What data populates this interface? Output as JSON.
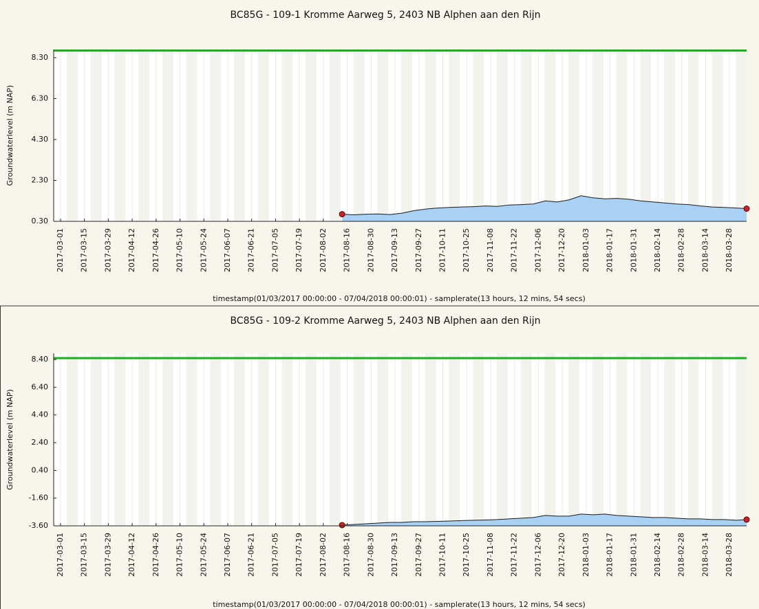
{
  "chart_data": [
    {
      "type": "area",
      "title": "BC85G - 109-1 Kromme Aarweg 5, 2403 NB Alphen aan den Rijn",
      "y_label": "Groundwaterlevel (m NAP)",
      "x_label": "timestamp(01/03/2017 00:00:00 - 07/04/2018 00:00:01) - samplerate(13 hours, 12 mins, 54 secs)",
      "x": [
        "2017-08-13",
        "2017-08-20",
        "2017-08-27",
        "2017-09-03",
        "2017-09-10",
        "2017-09-17",
        "2017-09-24",
        "2017-10-01",
        "2017-10-08",
        "2017-10-15",
        "2017-10-22",
        "2017-10-29",
        "2017-11-05",
        "2017-11-12",
        "2017-11-19",
        "2017-11-26",
        "2017-12-03",
        "2017-12-10",
        "2017-12-17",
        "2017-12-24",
        "2017-12-31",
        "2018-01-07",
        "2018-01-14",
        "2018-01-21",
        "2018-01-28",
        "2018-02-04",
        "2018-02-11",
        "2018-02-18",
        "2018-02-25",
        "2018-03-04",
        "2018-03-11",
        "2018-03-18",
        "2018-03-25",
        "2018-04-01",
        "2018-04-07"
      ],
      "values": [
        0.65,
        0.62,
        0.65,
        0.66,
        0.63,
        0.7,
        0.82,
        0.9,
        0.95,
        0.98,
        1.0,
        1.02,
        1.05,
        1.03,
        1.1,
        1.12,
        1.15,
        1.3,
        1.25,
        1.35,
        1.55,
        1.45,
        1.4,
        1.42,
        1.38,
        1.3,
        1.25,
        1.2,
        1.15,
        1.12,
        1.05,
        1.0,
        0.98,
        0.95,
        0.92
      ],
      "fill_color": "#a9d0f5",
      "line_color": "#1a1a1a",
      "marker_color": "#c0262c",
      "reference_line": {
        "value": 8.65,
        "color": "#22aa22"
      },
      "xlim": [
        "2017-02-25",
        "2018-04-07"
      ],
      "xticks": [
        "2017-03-01",
        "2017-03-15",
        "2017-03-29",
        "2017-04-12",
        "2017-04-26",
        "2017-05-10",
        "2017-05-24",
        "2017-06-07",
        "2017-06-21",
        "2017-07-05",
        "2017-07-19",
        "2017-08-02",
        "2017-08-16",
        "2017-08-30",
        "2017-09-13",
        "2017-09-27",
        "2017-10-11",
        "2017-10-25",
        "2017-11-08",
        "2017-11-22",
        "2017-12-06",
        "2017-12-20",
        "2018-01-03",
        "2018-01-17",
        "2018-01-31",
        "2018-02-14",
        "2018-02-28",
        "2018-03-14",
        "2018-03-28"
      ],
      "ylim": [
        0.3,
        8.7
      ],
      "yticks": [
        {
          "value": 0.3,
          "label": "0.30"
        },
        {
          "value": 2.3,
          "label": "2.30"
        },
        {
          "value": 4.3,
          "label": "4.30"
        },
        {
          "value": 6.3,
          "label": "6.30"
        },
        {
          "value": 8.3,
          "label": "8.30"
        }
      ],
      "grid": true
    },
    {
      "type": "area",
      "title": "BC85G - 109-2 Kromme Aarweg 5, 2403 NB Alphen aan den Rijn",
      "y_label": "Groundwaterlevel (m NAP)",
      "x_label": "timestamp(01/03/2017 00:00:00 - 07/04/2018 00:00:01) - samplerate(13 hours, 12 mins, 54 secs)",
      "x": [
        "2017-08-13",
        "2017-08-20",
        "2017-08-27",
        "2017-09-03",
        "2017-09-10",
        "2017-09-17",
        "2017-09-24",
        "2017-10-01",
        "2017-10-08",
        "2017-10-15",
        "2017-10-22",
        "2017-10-29",
        "2017-11-05",
        "2017-11-12",
        "2017-11-19",
        "2017-11-26",
        "2017-12-03",
        "2017-12-10",
        "2017-12-17",
        "2017-12-24",
        "2017-12-31",
        "2018-01-07",
        "2018-01-14",
        "2018-01-21",
        "2018-01-28",
        "2018-02-04",
        "2018-02-11",
        "2018-02-18",
        "2018-02-25",
        "2018-03-04",
        "2018-03-11",
        "2018-03-18",
        "2018-03-25",
        "2018-04-01",
        "2018-04-07"
      ],
      "values": [
        -3.55,
        -3.5,
        -3.45,
        -3.4,
        -3.35,
        -3.35,
        -3.3,
        -3.3,
        -3.28,
        -3.25,
        -3.22,
        -3.2,
        -3.18,
        -3.15,
        -3.1,
        -3.05,
        -3.0,
        -2.85,
        -2.9,
        -2.9,
        -2.75,
        -2.8,
        -2.75,
        -2.85,
        -2.9,
        -2.95,
        -3.0,
        -3.0,
        -3.05,
        -3.1,
        -3.1,
        -3.15,
        -3.15,
        -3.2,
        -3.15
      ],
      "fill_color": "#a9d0f5",
      "line_color": "#1a1a1a",
      "marker_color": "#c0262c",
      "reference_line": {
        "value": 8.5,
        "color": "#22aa22"
      },
      "xlim": [
        "2017-02-25",
        "2018-04-07"
      ],
      "xticks": [
        "2017-03-01",
        "2017-03-15",
        "2017-03-29",
        "2017-04-12",
        "2017-04-26",
        "2017-05-10",
        "2017-05-24",
        "2017-06-07",
        "2017-06-21",
        "2017-07-05",
        "2017-07-19",
        "2017-08-02",
        "2017-08-16",
        "2017-08-30",
        "2017-09-13",
        "2017-09-27",
        "2017-10-11",
        "2017-10-25",
        "2017-11-08",
        "2017-11-22",
        "2017-12-06",
        "2017-12-20",
        "2018-01-03",
        "2018-01-17",
        "2018-01-31",
        "2018-02-14",
        "2018-02-28",
        "2018-03-14",
        "2018-03-28"
      ],
      "ylim": [
        -3.6,
        8.85
      ],
      "yticks": [
        {
          "value": -3.6,
          "label": "-3.60"
        },
        {
          "value": -1.6,
          "label": "-1.60"
        },
        {
          "value": 0.4,
          "label": "0.40"
        },
        {
          "value": 2.4,
          "label": "2.40"
        },
        {
          "value": 4.4,
          "label": "4.40"
        },
        {
          "value": 6.4,
          "label": "6.40"
        },
        {
          "value": 8.4,
          "label": "8.40"
        }
      ],
      "grid": true
    }
  ]
}
